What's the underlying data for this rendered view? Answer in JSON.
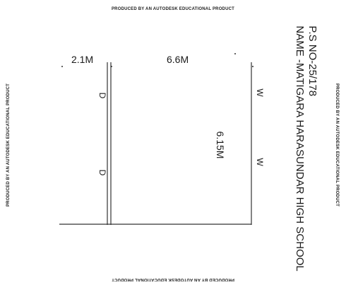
{
  "stamps": {
    "top": "PRODUCED BY AN AUTODESK EDUCATIONAL PRODUCT",
    "bottom": "PRODUCED BY AN AUTODESK EDUCATIONAL PRODUCT",
    "left": "PRODUCED BY AN AUTODESK EDUCATIONAL PRODUCT",
    "right": "PRODUCED BY AN AUTODESK EDUCATIONAL PRODUCT"
  },
  "dimensions": {
    "left_width": "2.1M",
    "main_width": "6.6M",
    "height": "6.15M"
  },
  "marks": {
    "door_1": "D",
    "door_2": "D",
    "window_1": "W",
    "window_2": "W"
  },
  "title_block": {
    "plot_no": "P.S NO-25/178",
    "name": "NAME -MATIGARA HARASUNDAR HIGH SCHOOL"
  }
}
